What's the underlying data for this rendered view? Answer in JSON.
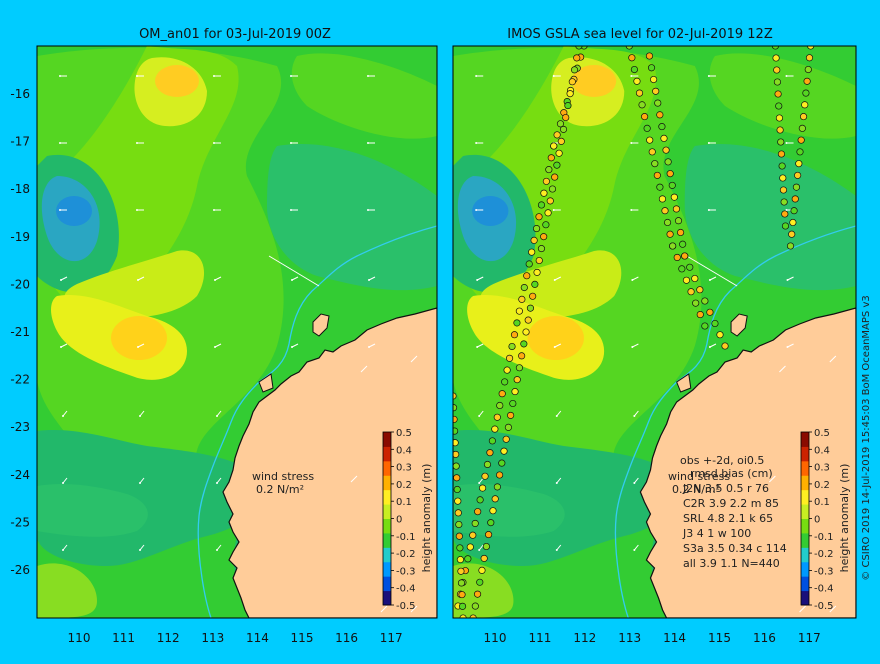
{
  "colors": {
    "page_background": "#00ccff",
    "land": "#ffcc99",
    "ocean_base": "#33cc33",
    "ocean_low": "#2aa6c2",
    "ocean_mid_high": "#c9ec17",
    "ocean_high": "#ffd21a",
    "coastline": "#111111",
    "shelf_contour": "#33ccee",
    "wind_arrow": "#ffffff",
    "colorbar_scale": [
      "#1a0f7a",
      "#0050e0",
      "#0099ff",
      "#22cccc",
      "#33cc33",
      "#77dd11",
      "#c8ee22",
      "#ffee22",
      "#ffb000",
      "#ff6600",
      "#cc2200",
      "#8a0a00"
    ]
  },
  "left_panel": {
    "title": "OM_an01 for 03-Jul-2019 00Z",
    "wind_stress_label": "wind stress",
    "wind_stress_scale": "0.2 N/m²",
    "colorbar": {
      "label": "height anomaly (m)",
      "ticks": [
        "0.5",
        "0.4",
        "0.3",
        "0.2",
        "0.1",
        "0",
        "-0.1",
        "-0.2",
        "-0.3",
        "-0.4",
        "-0.5"
      ]
    }
  },
  "right_panel": {
    "title": "IMOS GSLA sea level  for 02-Jul-2019 12Z",
    "wind_stress_label": "wind stress",
    "wind_stress_scale": "0.2 N/m²",
    "obs_header": "obs +-2d, oi0.5",
    "stats_header": "rmsd bias (cm)",
    "stats_rows": [
      "J2N   3.5 0.5 r 76",
      "C2R   3.9 2.2 m 85",
      "SRL   4.8 2.1 k 65",
      "J3    4 1 w 100",
      "S3a   3.5 0.34 c 114",
      "all   3.9 1.1 N=440"
    ],
    "colorbar": {
      "label": "height anomaly (m)",
      "ticks": [
        "0.5",
        "0.4",
        "0.3",
        "0.2",
        "0.1",
        "0",
        "-0.1",
        "-0.2",
        "-0.3",
        "-0.4",
        "-0.5"
      ]
    }
  },
  "x_ticks": [
    "110",
    "111",
    "112",
    "113",
    "114",
    "115",
    "116",
    "117"
  ],
  "y_ticks": [
    "-16",
    "-17",
    "-18",
    "-19",
    "-20",
    "-21",
    "-22",
    "-23",
    "-24",
    "-25",
    "-26"
  ],
  "side_caption": "© CSIRO 2019   14-Jul-2019 15:45:03 BoM OceanMAPS v3"
}
